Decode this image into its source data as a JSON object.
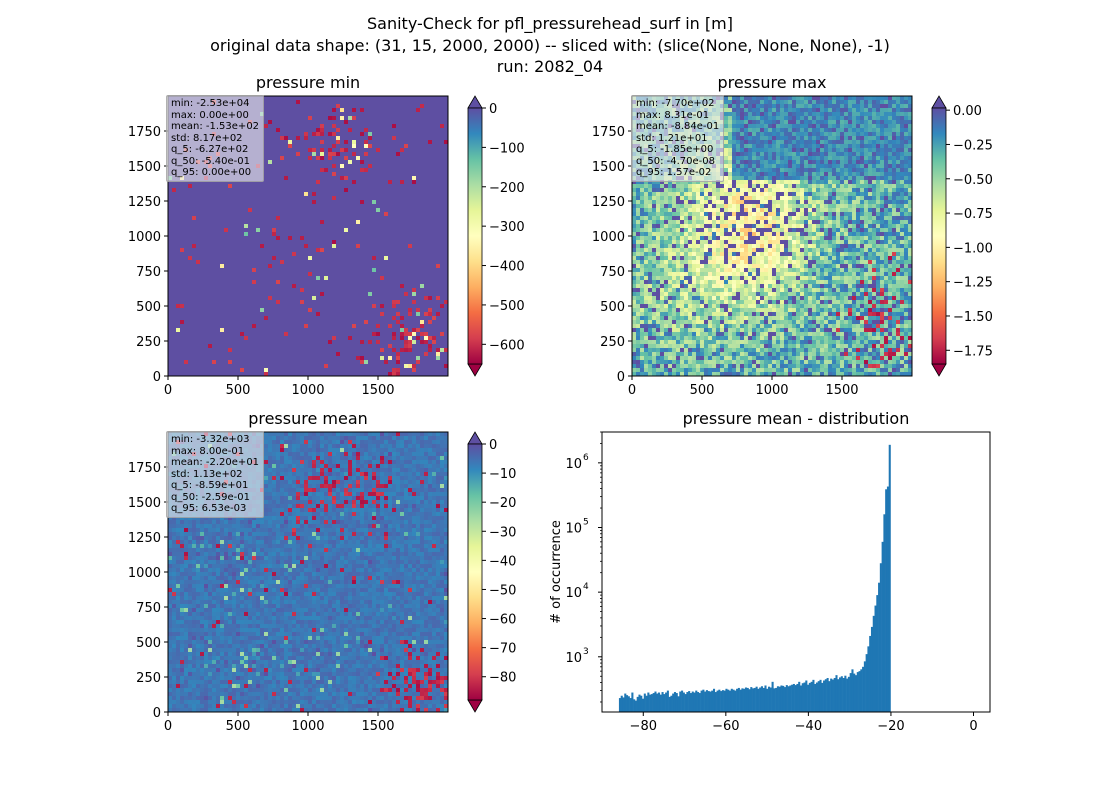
{
  "figure": {
    "title_lines": [
      "Sanity-Check for pfl_pressurehead_surf in [m]",
      "original data shape: (31, 15, 2000, 2000) -- sliced with: (slice(None, None, None), -1)",
      "run: 2082_04"
    ]
  },
  "colormap": {
    "stops": [
      "#9e0142",
      "#d53e4f",
      "#f46d43",
      "#fdae61",
      "#fee08b",
      "#ffffbf",
      "#e6f598",
      "#abdda4",
      "#66c2a5",
      "#3288bd",
      "#5e4fa2"
    ],
    "over_color": "#5e4fa2",
    "under_color": "#9e0142",
    "histogram_color": "#1f77b4"
  },
  "chart_data": [
    {
      "type": "heatmap",
      "title": "pressure min",
      "xticks": [
        "0",
        "500",
        "1000",
        "1500"
      ],
      "yticks": [
        "0",
        "250",
        "500",
        "750",
        "1000",
        "1250",
        "1500",
        "1750"
      ],
      "xlim": [
        0,
        2000
      ],
      "ylim": [
        0,
        2000
      ],
      "colorbar": {
        "vmin": -650,
        "vmax": 0,
        "ticks": [
          "0",
          "−100",
          "−200",
          "−300",
          "−400",
          "−500",
          "−600"
        ],
        "tick_values": [
          0,
          -100,
          -200,
          -300,
          -400,
          -500,
          -600
        ],
        "extend": "both"
      },
      "stats": [
        "min: -2.53e+04",
        "max: 0.00e+00",
        "mean: -1.53e+02",
        "std: 8.17e+02",
        "q_5: -6.27e+02",
        "q_50: -5.40e-01",
        "q_95: 0.00e+00"
      ]
    },
    {
      "type": "heatmap",
      "title": "pressure max",
      "xticks": [
        "0",
        "500",
        "1000",
        "1500"
      ],
      "yticks": [
        "0",
        "250",
        "500",
        "750",
        "1000",
        "1250",
        "1500",
        "1750"
      ],
      "xlim": [
        0,
        2000
      ],
      "ylim": [
        0,
        2000
      ],
      "colorbar": {
        "vmin": -1.85,
        "vmax": 0.0157,
        "ticks": [
          "0.00",
          "−0.25",
          "−0.50",
          "−0.75",
          "−1.00",
          "−1.25",
          "−1.50",
          "−1.75"
        ],
        "tick_values": [
          0,
          -0.25,
          -0.5,
          -0.75,
          -1.0,
          -1.25,
          -1.5,
          -1.75
        ],
        "extend": "both"
      },
      "stats": [
        "min: -7.70e+02",
        "max: 8.31e-01",
        "mean: -8.84e-01",
        "std: 1.21e+01",
        "q_5: -1.85e+00",
        "q_50: -4.70e-08",
        "q_95: 1.57e-02"
      ]
    },
    {
      "type": "heatmap",
      "title": "pressure mean",
      "xticks": [
        "0",
        "500",
        "1000",
        "1500"
      ],
      "yticks": [
        "0",
        "250",
        "500",
        "750",
        "1000",
        "1250",
        "1500",
        "1750"
      ],
      "xlim": [
        0,
        2000
      ],
      "ylim": [
        0,
        2000
      ],
      "colorbar": {
        "vmin": -88,
        "vmax": 0,
        "ticks": [
          "0",
          "−10",
          "−20",
          "−30",
          "−40",
          "−50",
          "−60",
          "−70",
          "−80"
        ],
        "tick_values": [
          0,
          -10,
          -20,
          -30,
          -40,
          -50,
          -60,
          -70,
          -80
        ],
        "extend": "both"
      },
      "stats": [
        "min: -3.32e+03",
        "max: 8.00e-01",
        "mean: -2.20e+01",
        "std: 1.13e+02",
        "q_5: -8.59e+01",
        "q_50: -2.59e-01",
        "q_95: 6.53e-03"
      ]
    },
    {
      "type": "bar",
      "title": "pressure mean - distribution",
      "xlabel": "",
      "ylabel": "# of occurrence",
      "xlim": [
        -90,
        4
      ],
      "ylim": [
        140,
        3000000
      ],
      "yscale": "log",
      "xticks": [
        "−80",
        "−60",
        "−40",
        "−20",
        "0"
      ],
      "xtick_values": [
        -80,
        -60,
        -40,
        -20,
        0
      ],
      "yticks": [
        "10",
        "10",
        "10",
        "10"
      ],
      "ytick_exp": [
        "3",
        "4",
        "5",
        "6"
      ],
      "ytick_values": [
        1000,
        10000,
        100000,
        1000000
      ],
      "bin_start": -85.9,
      "bin_width": 0.43,
      "counts": [
        230,
        250,
        235,
        270,
        255,
        245,
        230,
        280,
        220,
        210,
        240,
        260,
        250,
        225,
        270,
        250,
        280,
        260,
        265,
        275,
        290,
        270,
        280,
        260,
        285,
        265,
        280,
        300,
        240,
        250,
        270,
        285,
        275,
        245,
        290,
        300,
        280,
        265,
        285,
        295,
        275,
        290,
        280,
        300,
        285,
        275,
        300,
        310,
        290,
        305,
        295,
        290,
        300,
        320,
        285,
        300,
        310,
        295,
        305,
        300,
        320,
        310,
        300,
        320,
        310,
        300,
        320,
        330,
        310,
        325,
        320,
        335,
        330,
        315,
        340,
        325,
        330,
        345,
        320,
        335,
        350,
        330,
        360,
        320,
        345,
        335,
        410,
        325,
        330,
        350,
        345,
        360,
        355,
        340,
        365,
        350,
        360,
        370,
        380,
        365,
        380,
        410,
        360,
        390,
        400,
        430,
        370,
        395,
        410,
        440,
        380,
        400,
        420,
        440,
        395,
        430,
        450,
        470,
        420,
        460,
        445,
        470,
        520,
        450,
        480,
        500,
        470,
        510,
        460,
        490,
        560,
        640,
        550,
        520,
        580,
        600,
        640,
        700,
        850,
        1100,
        1450,
        2100,
        2900,
        4300,
        6200,
        9000,
        14000,
        28000,
        60000,
        160000,
        390000,
        430000,
        1900000
      ]
    }
  ]
}
